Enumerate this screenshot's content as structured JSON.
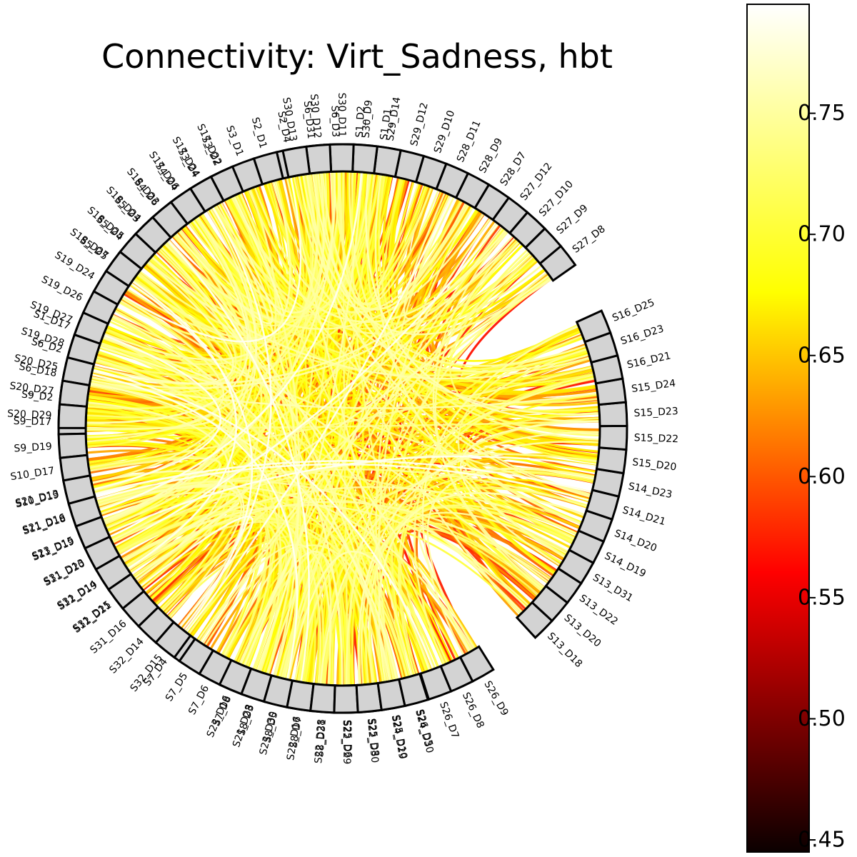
{
  "chart_data": {
    "type": "chord",
    "title": "Connectivity: Virt_Sadness, hbt",
    "colormap": "hot",
    "node_fill": "#d3d3d3",
    "node_edge": "#000000",
    "colorbar": {
      "min": 0.445,
      "max": 0.795,
      "ticks": [
        "0.45",
        "0.50",
        "0.55",
        "0.60",
        "0.65",
        "0.70",
        "0.75"
      ],
      "tick_values": [
        0.45,
        0.5,
        0.55,
        0.6,
        0.65,
        0.7,
        0.75
      ]
    },
    "groups": [
      {
        "name": "group-1",
        "nodes": [
          "S1_D1",
          "S1_D2",
          "S6_D3",
          "S6_D31",
          "S2_D4",
          "S2_D1",
          "S3_D1",
          "S3_D2",
          "S3_D4",
          "S4_D4",
          "S4_D6",
          "S5_D3",
          "S5_D4",
          "S5_D5"
        ]
      },
      {
        "name": "group-2",
        "nodes": [
          "S1_D17",
          "S6_D2",
          "S6_D18",
          "S9_D2",
          "S9_D17",
          "S9_D19",
          "S10_D17",
          "S10_D19",
          "S11_D18",
          "S11_D19",
          "S11_D20",
          "S12_D19",
          "S12_D21"
        ]
      },
      {
        "name": "group-3",
        "nodes": [
          "S7_D4",
          "S7_D5",
          "S7_D6",
          "S7_D8",
          "S8_D3",
          "S8_D5",
          "S8_D7",
          "S8_D31",
          "S25_D6",
          "S25_D8",
          "S25_D10",
          "S26_D5",
          "S26_D7",
          "S26_D8",
          "S26_D9"
        ]
      },
      {
        "name": "group-4",
        "nodes": [
          "S13_D18",
          "S13_D20",
          "S13_D22",
          "S13_D31",
          "S14_D19",
          "S14_D20",
          "S14_D21",
          "S14_D23",
          "S15_D20",
          "S15_D22",
          "S15_D23",
          "S15_D24",
          "S16_D21",
          "S16_D23",
          "S16_D25"
        ]
      },
      {
        "name": "group-5",
        "nodes": [
          "S27_D8",
          "S27_D9",
          "S27_D10",
          "S27_D12",
          "S28_D7",
          "S28_D9",
          "S28_D11",
          "S29_D10",
          "S29_D12",
          "S29_D14",
          "S30_D9",
          "S30_D11",
          "S30_D12",
          "S30_D13"
        ]
      },
      {
        "name": "group-6",
        "nodes": [
          "S17_D22",
          "S17_D24",
          "S17_D26",
          "S18_D23",
          "S18_D24",
          "S18_D25",
          "S18_D27",
          "S19_D24",
          "S19_D26",
          "S19_D27",
          "S19_D28",
          "S20_D25",
          "S20_D27",
          "S20_D29"
        ]
      },
      {
        "name": "group-7",
        "nodes": [
          "S21_D13",
          "S21_D16",
          "S23_D15",
          "S31_D13",
          "S31_D14",
          "S31_D15",
          "S31_D16",
          "S32_D14",
          "S32_D15"
        ]
      },
      {
        "name": "group-8",
        "nodes": [
          "S23_D16",
          "S21_D28",
          "S23_D30",
          "S22_D16",
          "S22_D28",
          "S22_D29",
          "S22_D30",
          "S24_D29",
          "S24_D30"
        ]
      }
    ]
  }
}
